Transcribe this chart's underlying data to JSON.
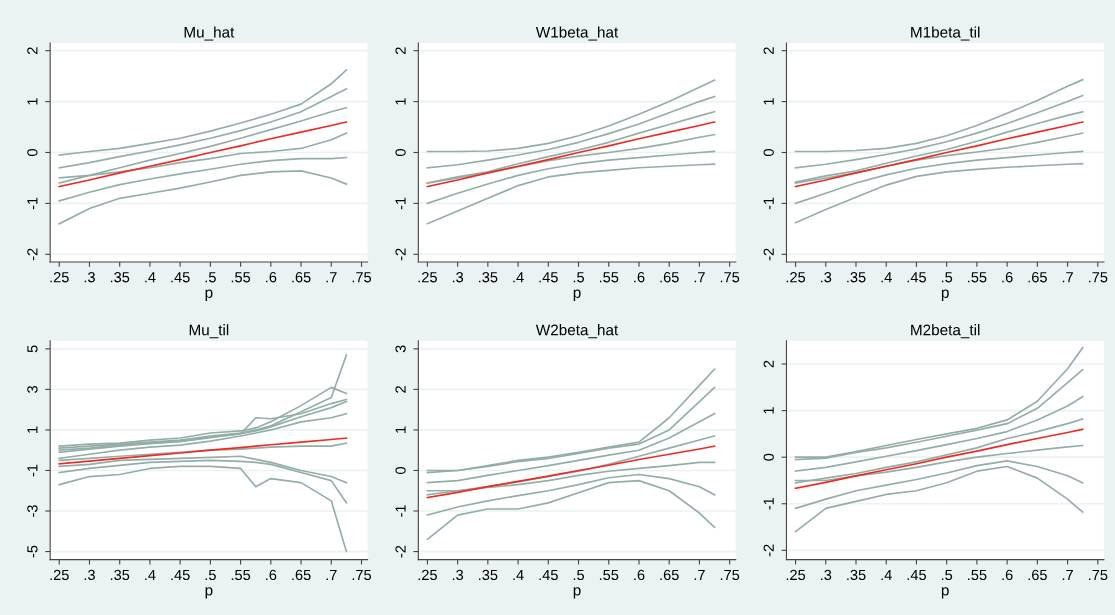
{
  "chart_data": [
    {
      "type": "line",
      "title": "Mu_hat",
      "xlabel": "p",
      "grid": "y",
      "x": [
        0.25,
        0.3,
        0.35,
        0.4,
        0.45,
        0.5,
        0.55,
        0.6,
        0.65,
        0.7,
        0.725
      ],
      "xlim": [
        0.235,
        0.76
      ],
      "xticks": [
        {
          "value": 0.25,
          "label": ".25"
        },
        {
          "value": 0.3,
          "label": ".3"
        },
        {
          "value": 0.35,
          "label": ".35"
        },
        {
          "value": 0.4,
          "label": ".4"
        },
        {
          "value": 0.45,
          "label": ".45"
        },
        {
          "value": 0.5,
          "label": ".5"
        },
        {
          "value": 0.55,
          "label": ".55"
        },
        {
          "value": 0.6,
          "label": ".6"
        },
        {
          "value": 0.65,
          "label": ".65"
        },
        {
          "value": 0.7,
          "label": ".7"
        },
        {
          "value": 0.75,
          "label": ".75"
        }
      ],
      "ylim": [
        -2.15,
        2.15
      ],
      "yticks": [
        -2,
        -1,
        0,
        1,
        2
      ],
      "series": [
        {
          "color": "#93aea8",
          "values": [
            -0.05,
            0.02,
            0.08,
            0.18,
            0.28,
            0.42,
            0.58,
            0.75,
            0.95,
            1.35,
            1.62
          ]
        },
        {
          "color": "#93aea8",
          "values": [
            -0.3,
            -0.2,
            -0.08,
            0.03,
            0.15,
            0.28,
            0.43,
            0.6,
            0.8,
            1.1,
            1.25
          ]
        },
        {
          "color": "#93aea8",
          "values": [
            -0.6,
            -0.45,
            -0.3,
            -0.15,
            -0.02,
            0.12,
            0.28,
            0.45,
            0.62,
            0.8,
            0.88
          ]
        },
        {
          "color": "#93aea8",
          "values": [
            -0.5,
            -0.45,
            -0.38,
            -0.3,
            -0.2,
            -0.12,
            -0.02,
            0.02,
            0.08,
            0.25,
            0.38
          ]
        },
        {
          "color": "#93aea8",
          "values": [
            -0.95,
            -0.78,
            -0.63,
            -0.52,
            -0.42,
            -0.33,
            -0.23,
            -0.16,
            -0.12,
            -0.12,
            -0.1
          ]
        },
        {
          "color": "#93aea8",
          "values": [
            -1.4,
            -1.1,
            -0.9,
            -0.8,
            -0.7,
            -0.58,
            -0.45,
            -0.38,
            -0.36,
            -0.5,
            -0.62
          ]
        },
        {
          "color": "#ee2a24",
          "values": [
            -0.67,
            -0.54,
            -0.4,
            -0.27,
            -0.14,
            0.0,
            0.13,
            0.27,
            0.4,
            0.53,
            0.6
          ]
        }
      ]
    },
    {
      "type": "line",
      "title": "W1beta_hat",
      "xlabel": "p",
      "grid": "y",
      "x": [
        0.25,
        0.3,
        0.35,
        0.4,
        0.45,
        0.5,
        0.55,
        0.6,
        0.65,
        0.7,
        0.725
      ],
      "xlim": [
        0.235,
        0.76
      ],
      "xticks": [
        {
          "value": 0.25,
          "label": ".25"
        },
        {
          "value": 0.3,
          "label": ".3"
        },
        {
          "value": 0.35,
          "label": ".35"
        },
        {
          "value": 0.4,
          "label": ".4"
        },
        {
          "value": 0.45,
          "label": ".45"
        },
        {
          "value": 0.5,
          "label": ".5"
        },
        {
          "value": 0.55,
          "label": ".55"
        },
        {
          "value": 0.6,
          "label": ".6"
        },
        {
          "value": 0.65,
          "label": ".65"
        },
        {
          "value": 0.7,
          "label": ".7"
        },
        {
          "value": 0.75,
          "label": ".75"
        }
      ],
      "ylim": [
        -2.15,
        2.15
      ],
      "yticks": [
        -2,
        -1,
        0,
        1,
        2
      ],
      "series": [
        {
          "color": "#93aea8",
          "values": [
            0.02,
            0.02,
            0.03,
            0.08,
            0.18,
            0.33,
            0.52,
            0.75,
            1.0,
            1.28,
            1.42
          ]
        },
        {
          "color": "#93aea8",
          "values": [
            -0.3,
            -0.24,
            -0.15,
            -0.05,
            0.06,
            0.2,
            0.37,
            0.56,
            0.78,
            1.0,
            1.1
          ]
        },
        {
          "color": "#93aea8",
          "values": [
            -0.6,
            -0.48,
            -0.38,
            -0.22,
            -0.08,
            0.05,
            0.2,
            0.38,
            0.55,
            0.72,
            0.8
          ]
        },
        {
          "color": "#93aea8",
          "values": [
            -0.6,
            -0.5,
            -0.4,
            -0.28,
            -0.16,
            -0.07,
            0.0,
            0.08,
            0.18,
            0.3,
            0.35
          ]
        },
        {
          "color": "#93aea8",
          "values": [
            -1.0,
            -0.8,
            -0.62,
            -0.45,
            -0.32,
            -0.22,
            -0.15,
            -0.1,
            -0.05,
            0.0,
            0.02
          ]
        },
        {
          "color": "#93aea8",
          "values": [
            -1.4,
            -1.15,
            -0.9,
            -0.65,
            -0.48,
            -0.4,
            -0.35,
            -0.3,
            -0.27,
            -0.24,
            -0.23
          ]
        },
        {
          "color": "#ee2a24",
          "values": [
            -0.67,
            -0.54,
            -0.4,
            -0.27,
            -0.14,
            0.0,
            0.13,
            0.27,
            0.4,
            0.53,
            0.6
          ]
        }
      ]
    },
    {
      "type": "line",
      "title": "M1beta_til",
      "xlabel": "p",
      "grid": "y",
      "x": [
        0.25,
        0.3,
        0.35,
        0.4,
        0.45,
        0.5,
        0.55,
        0.6,
        0.65,
        0.7,
        0.725
      ],
      "xlim": [
        0.235,
        0.76
      ],
      "xticks": [
        {
          "value": 0.25,
          "label": ".25"
        },
        {
          "value": 0.3,
          "label": ".3"
        },
        {
          "value": 0.35,
          "label": ".35"
        },
        {
          "value": 0.4,
          "label": ".4"
        },
        {
          "value": 0.45,
          "label": ".45"
        },
        {
          "value": 0.5,
          "label": ".5"
        },
        {
          "value": 0.55,
          "label": ".55"
        },
        {
          "value": 0.6,
          "label": ".6"
        },
        {
          "value": 0.65,
          "label": ".65"
        },
        {
          "value": 0.7,
          "label": ".7"
        },
        {
          "value": 0.75,
          "label": ".75"
        }
      ],
      "ylim": [
        -2.15,
        2.15
      ],
      "yticks": [
        -2,
        -1,
        0,
        1,
        2
      ],
      "series": [
        {
          "color": "#93aea8",
          "values": [
            0.02,
            0.02,
            0.04,
            0.08,
            0.18,
            0.33,
            0.53,
            0.77,
            1.02,
            1.3,
            1.43
          ]
        },
        {
          "color": "#93aea8",
          "values": [
            -0.3,
            -0.23,
            -0.14,
            -0.04,
            0.07,
            0.21,
            0.38,
            0.57,
            0.78,
            1.0,
            1.12
          ]
        },
        {
          "color": "#93aea8",
          "values": [
            -0.58,
            -0.46,
            -0.36,
            -0.21,
            -0.07,
            0.06,
            0.22,
            0.4,
            0.57,
            0.73,
            0.8
          ]
        },
        {
          "color": "#93aea8",
          "values": [
            -0.6,
            -0.5,
            -0.4,
            -0.27,
            -0.15,
            -0.06,
            0.01,
            0.09,
            0.2,
            0.32,
            0.38
          ]
        },
        {
          "color": "#93aea8",
          "values": [
            -1.0,
            -0.8,
            -0.6,
            -0.44,
            -0.31,
            -0.22,
            -0.15,
            -0.1,
            -0.05,
            0.0,
            0.02
          ]
        },
        {
          "color": "#93aea8",
          "values": [
            -1.38,
            -1.12,
            -0.88,
            -0.64,
            -0.47,
            -0.38,
            -0.33,
            -0.29,
            -0.26,
            -0.23,
            -0.22
          ]
        },
        {
          "color": "#ee2a24",
          "values": [
            -0.67,
            -0.54,
            -0.4,
            -0.27,
            -0.14,
            0.0,
            0.13,
            0.27,
            0.4,
            0.53,
            0.6
          ]
        }
      ]
    },
    {
      "type": "line",
      "title": "Mu_til",
      "xlabel": "p",
      "grid": "y",
      "x": [
        0.25,
        0.3,
        0.35,
        0.4,
        0.45,
        0.5,
        0.55,
        0.575,
        0.6,
        0.65,
        0.7,
        0.725
      ],
      "xlim": [
        0.235,
        0.76
      ],
      "xticks": [
        {
          "value": 0.25,
          "label": ".25"
        },
        {
          "value": 0.3,
          "label": ".3"
        },
        {
          "value": 0.35,
          "label": ".35"
        },
        {
          "value": 0.4,
          "label": ".4"
        },
        {
          "value": 0.45,
          "label": ".45"
        },
        {
          "value": 0.5,
          "label": ".5"
        },
        {
          "value": 0.55,
          "label": ".55"
        },
        {
          "value": 0.6,
          "label": ".6"
        },
        {
          "value": 0.65,
          "label": ".65"
        },
        {
          "value": 0.7,
          "label": ".7"
        },
        {
          "value": 0.75,
          "label": ".75"
        }
      ],
      "ylim": [
        -5.4,
        5.4
      ],
      "yticks": [
        -5,
        -3,
        -1,
        1,
        3,
        5
      ],
      "series": [
        {
          "color": "#93aea8",
          "values": [
            0.2,
            0.3,
            0.35,
            0.5,
            0.6,
            0.85,
            0.95,
            1.1,
            1.4,
            2.2,
            3.1,
            2.8
          ]
        },
        {
          "color": "#93aea8",
          "values": [
            0.1,
            0.2,
            0.3,
            0.4,
            0.5,
            0.7,
            0.85,
            1.0,
            1.2,
            1.9,
            2.6,
            4.7
          ]
        },
        {
          "color": "#93aea8",
          "values": [
            0.0,
            0.1,
            0.25,
            0.35,
            0.45,
            0.65,
            0.8,
            1.6,
            1.55,
            1.8,
            2.3,
            2.5
          ]
        },
        {
          "color": "#93aea8",
          "values": [
            -0.1,
            0.05,
            0.2,
            0.32,
            0.42,
            0.62,
            0.82,
            0.95,
            1.15,
            1.65,
            2.1,
            2.4
          ]
        },
        {
          "color": "#93aea8",
          "values": [
            -0.4,
            -0.2,
            0.0,
            0.15,
            0.25,
            0.45,
            0.7,
            0.85,
            1.0,
            1.4,
            1.6,
            1.8
          ]
        },
        {
          "color": "#93aea8",
          "values": [
            -0.5,
            -0.4,
            -0.3,
            -0.2,
            -0.1,
            0.0,
            0.05,
            0.1,
            0.15,
            0.2,
            0.2,
            0.35
          ]
        },
        {
          "color": "#93aea8",
          "values": [
            -0.8,
            -0.7,
            -0.5,
            -0.45,
            -0.4,
            -0.35,
            -0.3,
            -0.45,
            -0.6,
            -1.0,
            -1.3,
            -1.6
          ]
        },
        {
          "color": "#93aea8",
          "values": [
            -1.1,
            -0.9,
            -0.75,
            -0.6,
            -0.55,
            -0.5,
            -0.55,
            -0.6,
            -0.7,
            -1.1,
            -1.5,
            -2.6
          ]
        },
        {
          "color": "#93aea8",
          "values": [
            -1.7,
            -1.3,
            -1.2,
            -0.9,
            -0.8,
            -0.8,
            -0.9,
            -1.8,
            -1.4,
            -1.6,
            -2.5,
            -5.0
          ]
        },
        {
          "color": "#ee2a24",
          "values": [
            -0.67,
            -0.54,
            -0.4,
            -0.27,
            -0.14,
            0.0,
            0.13,
            0.2,
            0.27,
            0.4,
            0.53,
            0.6
          ]
        }
      ]
    },
    {
      "type": "line",
      "title": "W2beta_hat",
      "xlabel": "p",
      "grid": "y",
      "x": [
        0.25,
        0.3,
        0.35,
        0.4,
        0.45,
        0.5,
        0.55,
        0.6,
        0.65,
        0.7,
        0.725
      ],
      "xlim": [
        0.235,
        0.76
      ],
      "xticks": [
        {
          "value": 0.25,
          "label": ".25"
        },
        {
          "value": 0.3,
          "label": ".3"
        },
        {
          "value": 0.35,
          "label": ".35"
        },
        {
          "value": 0.4,
          "label": ".4"
        },
        {
          "value": 0.45,
          "label": ".45"
        },
        {
          "value": 0.5,
          "label": ".5"
        },
        {
          "value": 0.55,
          "label": ".55"
        },
        {
          "value": 0.6,
          "label": ".6"
        },
        {
          "value": 0.65,
          "label": ".65"
        },
        {
          "value": 0.7,
          "label": ".7"
        },
        {
          "value": 0.75,
          "label": ".75"
        }
      ],
      "ylim": [
        -2.2,
        3.2
      ],
      "yticks": [
        -2,
        -1,
        0,
        1,
        2,
        3
      ],
      "series": [
        {
          "color": "#93aea8",
          "values": [
            0.0,
            0.0,
            0.12,
            0.25,
            0.33,
            0.45,
            0.58,
            0.7,
            1.3,
            2.1,
            2.5
          ]
        },
        {
          "color": "#93aea8",
          "values": [
            -0.05,
            0.0,
            0.1,
            0.22,
            0.3,
            0.42,
            0.55,
            0.65,
            1.0,
            1.7,
            2.05
          ]
        },
        {
          "color": "#93aea8",
          "values": [
            -0.3,
            -0.25,
            -0.12,
            0.0,
            0.12,
            0.25,
            0.38,
            0.5,
            0.8,
            1.2,
            1.4
          ]
        },
        {
          "color": "#93aea8",
          "values": [
            -0.6,
            -0.5,
            -0.4,
            -0.28,
            -0.15,
            -0.02,
            0.15,
            0.35,
            0.55,
            0.75,
            0.85
          ]
        },
        {
          "color": "#93aea8",
          "values": [
            -0.5,
            -0.5,
            -0.42,
            -0.35,
            -0.25,
            -0.12,
            -0.02,
            0.05,
            0.12,
            0.2,
            0.2
          ]
        },
        {
          "color": "#93aea8",
          "values": [
            -1.1,
            -0.9,
            -0.75,
            -0.62,
            -0.5,
            -0.35,
            -0.18,
            -0.1,
            -0.2,
            -0.4,
            -0.6
          ]
        },
        {
          "color": "#93aea8",
          "values": [
            -1.7,
            -1.1,
            -0.95,
            -0.95,
            -0.8,
            -0.55,
            -0.3,
            -0.25,
            -0.5,
            -1.05,
            -1.4
          ]
        },
        {
          "color": "#ee2a24",
          "values": [
            -0.67,
            -0.54,
            -0.4,
            -0.27,
            -0.14,
            0.0,
            0.13,
            0.27,
            0.4,
            0.53,
            0.6
          ]
        }
      ]
    },
    {
      "type": "line",
      "title": "M2beta_til",
      "xlabel": "p",
      "grid": "y",
      "x": [
        0.25,
        0.3,
        0.35,
        0.4,
        0.45,
        0.5,
        0.55,
        0.6,
        0.65,
        0.7,
        0.725
      ],
      "xlim": [
        0.235,
        0.76
      ],
      "xticks": [
        {
          "value": 0.25,
          "label": ".25"
        },
        {
          "value": 0.3,
          "label": ".3"
        },
        {
          "value": 0.35,
          "label": ".35"
        },
        {
          "value": 0.4,
          "label": ".4"
        },
        {
          "value": 0.45,
          "label": ".45"
        },
        {
          "value": 0.5,
          "label": ".5"
        },
        {
          "value": 0.55,
          "label": ".55"
        },
        {
          "value": 0.6,
          "label": ".6"
        },
        {
          "value": 0.65,
          "label": ".65"
        },
        {
          "value": 0.7,
          "label": ".7"
        },
        {
          "value": 0.75,
          "label": ".75"
        }
      ],
      "ylim": [
        -2.2,
        2.5
      ],
      "yticks": [
        -2,
        -1,
        0,
        1,
        2
      ],
      "series": [
        {
          "color": "#93aea8",
          "values": [
            0.0,
            0.0,
            0.12,
            0.25,
            0.38,
            0.5,
            0.62,
            0.8,
            1.2,
            1.9,
            2.35
          ]
        },
        {
          "color": "#93aea8",
          "values": [
            -0.05,
            -0.02,
            0.1,
            0.2,
            0.32,
            0.45,
            0.58,
            0.72,
            1.05,
            1.6,
            1.88
          ]
        },
        {
          "color": "#93aea8",
          "values": [
            -0.3,
            -0.22,
            -0.1,
            0.02,
            0.14,
            0.27,
            0.4,
            0.55,
            0.8,
            1.1,
            1.3
          ]
        },
        {
          "color": "#93aea8",
          "values": [
            -0.55,
            -0.45,
            -0.35,
            -0.22,
            -0.1,
            0.05,
            0.2,
            0.4,
            0.55,
            0.72,
            0.82
          ]
        },
        {
          "color": "#93aea8",
          "values": [
            -0.5,
            -0.5,
            -0.4,
            -0.32,
            -0.22,
            -0.1,
            0.0,
            0.08,
            0.15,
            0.22,
            0.25
          ]
        },
        {
          "color": "#93aea8",
          "values": [
            -1.1,
            -0.9,
            -0.72,
            -0.6,
            -0.48,
            -0.34,
            -0.18,
            -0.08,
            -0.2,
            -0.4,
            -0.55
          ]
        },
        {
          "color": "#93aea8",
          "values": [
            -1.6,
            -1.1,
            -0.95,
            -0.8,
            -0.72,
            -0.55,
            -0.3,
            -0.2,
            -0.45,
            -0.9,
            -1.18
          ]
        },
        {
          "color": "#ee2a24",
          "values": [
            -0.67,
            -0.54,
            -0.4,
            -0.27,
            -0.14,
            0.0,
            0.13,
            0.27,
            0.4,
            0.53,
            0.6
          ]
        }
      ]
    }
  ]
}
